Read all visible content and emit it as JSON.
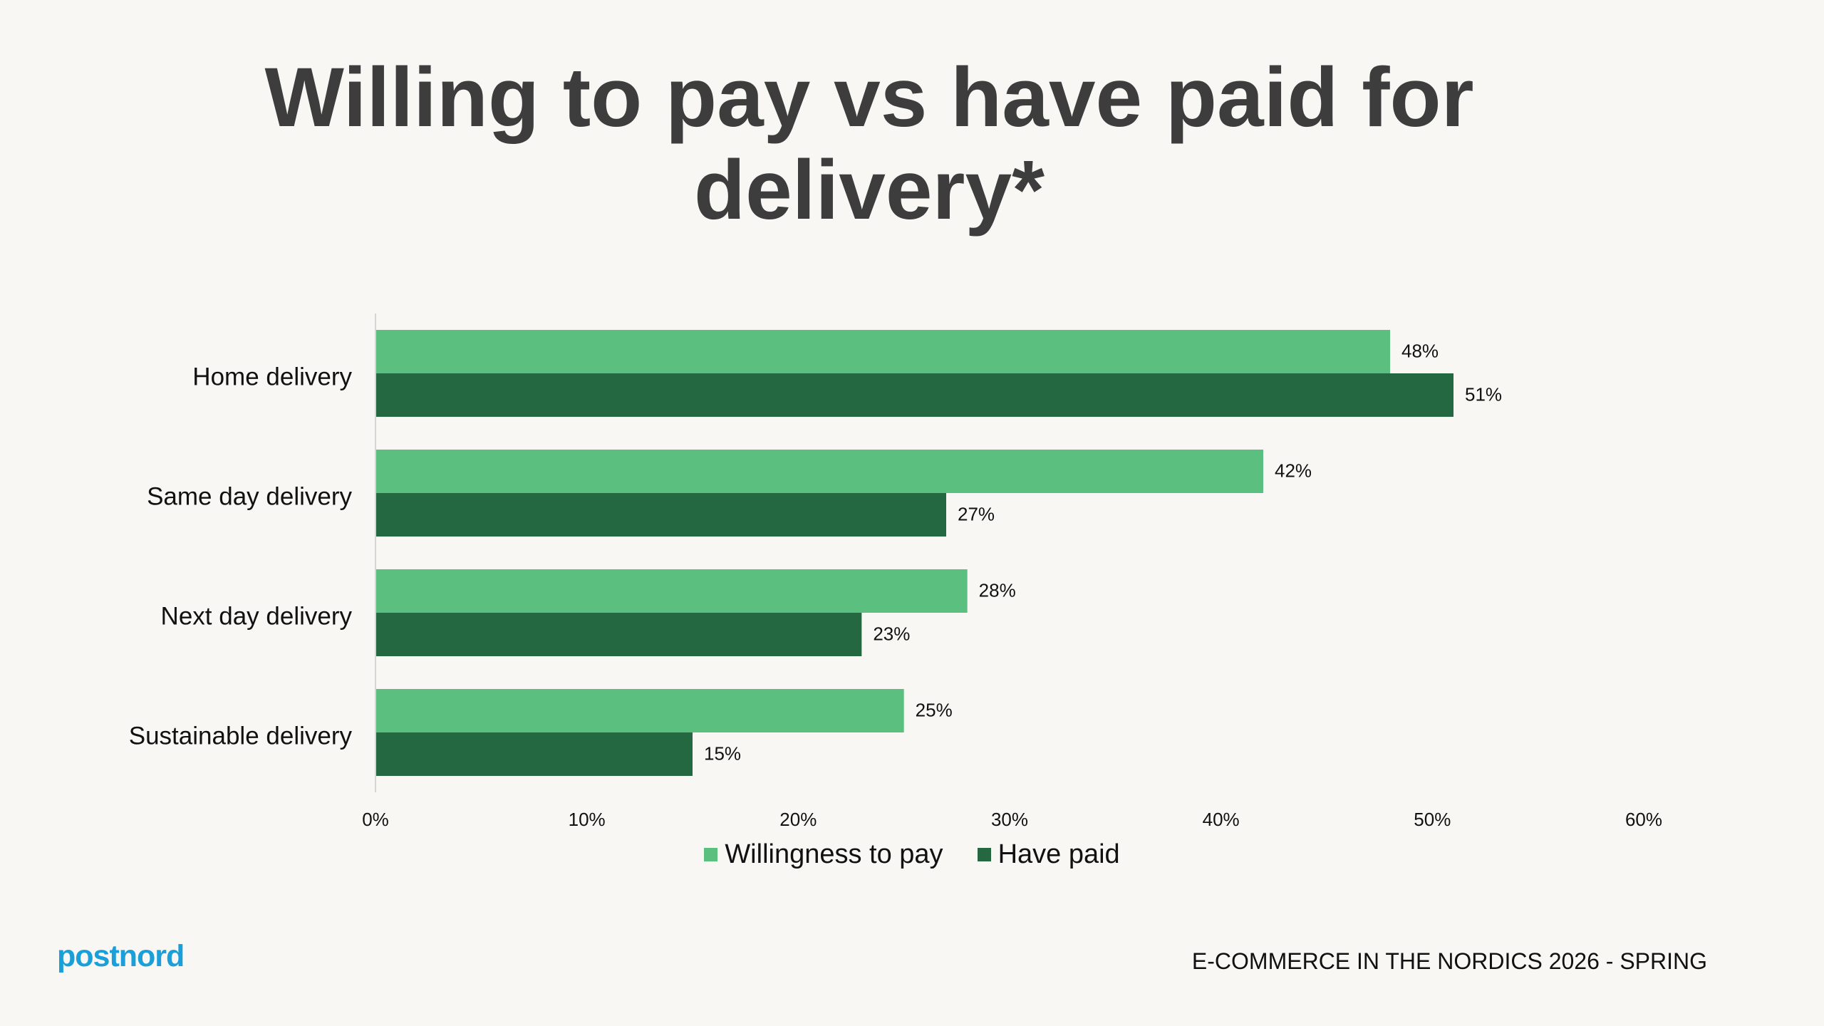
{
  "title": {
    "line1": "Willing to pay vs have paid for",
    "line2": "delivery*"
  },
  "chart_data": {
    "type": "bar",
    "orientation": "horizontal",
    "categories": [
      "Home delivery",
      "Same day delivery",
      "Next day delivery",
      "Sustainable delivery"
    ],
    "series": [
      {
        "name": "Willingness to pay",
        "values": [
          48,
          42,
          28,
          25
        ],
        "color": "#5bbf80"
      },
      {
        "name": "Have paid",
        "values": [
          51,
          27,
          23,
          15
        ],
        "color": "#236840"
      }
    ],
    "value_suffix": "%",
    "xlim": [
      0,
      60
    ],
    "x_ticks": [
      0,
      10,
      20,
      30,
      40,
      50,
      60
    ],
    "x_tick_labels": [
      "0%",
      "10%",
      "20%",
      "30%",
      "40%",
      "50%",
      "60%"
    ],
    "grid": false,
    "legend": "bottom"
  },
  "legend": {
    "items": [
      {
        "label": "Willingness to pay",
        "color": "#5bbf80"
      },
      {
        "label": "Have paid",
        "color": "#236840"
      }
    ]
  },
  "footer": {
    "brand": "postnord",
    "brand_color": "#1a9fd9",
    "caption": "E-COMMERCE IN THE NORDICS 2026 - SPRING"
  }
}
